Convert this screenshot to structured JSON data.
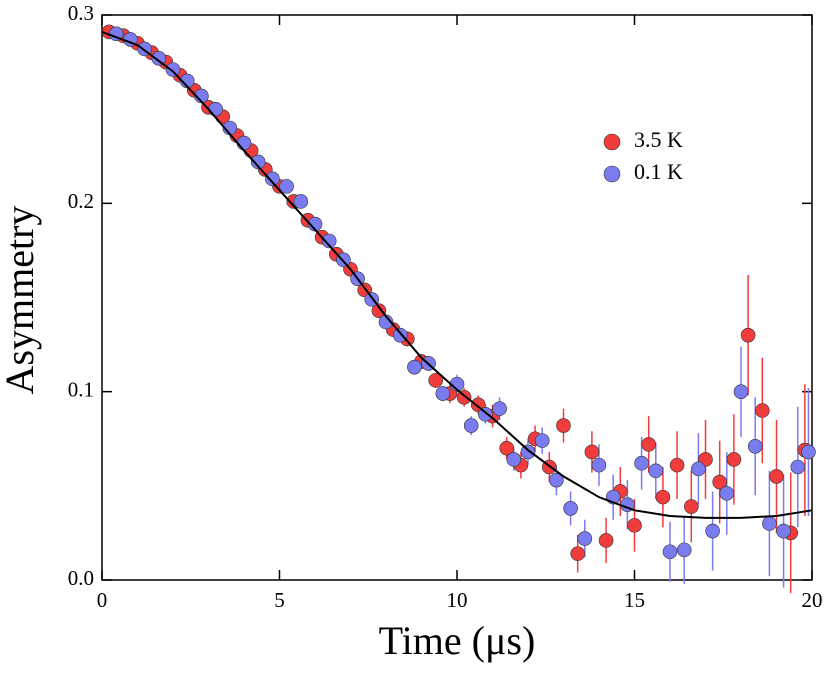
{
  "chart_data": {
    "type": "scatter",
    "xlabel": "Time (μs)",
    "ylabel": "Asymmetry",
    "xlim": [
      0,
      20
    ],
    "ylim": [
      0,
      0.3
    ],
    "xticks": [
      0,
      5,
      10,
      15,
      20
    ],
    "yticks": [
      {
        "value": 0,
        "label": "0.0"
      },
      0.1,
      0.2,
      0.3
    ],
    "legend": "upper right",
    "series": [
      {
        "name": "3.5 K",
        "color": "#f03c3c",
        "x": [
          0.2,
          0.6,
          1.0,
          1.4,
          1.8,
          2.2,
          2.6,
          3.0,
          3.4,
          3.8,
          4.2,
          4.6,
          5.0,
          5.4,
          5.8,
          6.2,
          6.6,
          7.0,
          7.4,
          7.8,
          8.2,
          8.6,
          9.0,
          9.4,
          9.8,
          10.2,
          10.6,
          11.0,
          11.4,
          11.8,
          12.2,
          12.6,
          13.0,
          13.4,
          13.8,
          14.2,
          14.6,
          15.0,
          15.4,
          15.8,
          16.2,
          16.6,
          17.0,
          17.4,
          17.8,
          18.2,
          18.6,
          19.0,
          19.4,
          19.8
        ],
        "values": [
          0.291,
          0.289,
          0.285,
          0.28,
          0.275,
          0.268,
          0.26,
          0.251,
          0.246,
          0.236,
          0.228,
          0.218,
          0.209,
          0.201,
          0.191,
          0.182,
          0.173,
          0.165,
          0.154,
          0.143,
          0.133,
          0.128,
          0.116,
          0.106,
          0.099,
          0.097,
          0.093,
          0.087,
          0.07,
          0.061,
          0.075,
          0.06,
          0.082,
          0.014,
          0.068,
          0.021,
          0.047,
          0.029,
          0.072,
          0.044,
          0.061,
          0.039,
          0.064,
          0.052,
          0.064,
          0.13,
          0.09,
          0.055,
          0.025,
          0.069
        ],
        "errors": [
          0.002,
          0.002,
          0.002,
          0.002,
          0.002,
          0.002,
          0.002,
          0.002,
          0.002,
          0.002,
          0.002,
          0.002,
          0.002,
          0.002,
          0.002,
          0.003,
          0.003,
          0.003,
          0.003,
          0.003,
          0.003,
          0.004,
          0.004,
          0.004,
          0.005,
          0.005,
          0.005,
          0.006,
          0.006,
          0.007,
          0.007,
          0.008,
          0.009,
          0.01,
          0.011,
          0.012,
          0.013,
          0.014,
          0.015,
          0.016,
          0.018,
          0.019,
          0.021,
          0.022,
          0.024,
          0.032,
          0.028,
          0.03,
          0.032,
          0.035
        ]
      },
      {
        "name": "0.1 K",
        "color": "#7b7bf0",
        "x": [
          0.4,
          0.8,
          1.2,
          1.6,
          2.0,
          2.4,
          2.8,
          3.2,
          3.6,
          4.0,
          4.4,
          4.8,
          5.2,
          5.6,
          6.0,
          6.4,
          6.8,
          7.2,
          7.6,
          8.0,
          8.4,
          8.8,
          9.2,
          9.6,
          10.0,
          10.4,
          10.8,
          11.2,
          11.6,
          12.0,
          12.4,
          12.8,
          13.2,
          13.6,
          14.0,
          14.4,
          14.8,
          15.2,
          15.6,
          16.0,
          16.4,
          16.8,
          17.2,
          17.6,
          18.0,
          18.4,
          18.8,
          19.2,
          19.6,
          19.9
        ],
        "values": [
          0.29,
          0.287,
          0.282,
          0.277,
          0.271,
          0.265,
          0.257,
          0.25,
          0.24,
          0.232,
          0.222,
          0.213,
          0.209,
          0.201,
          0.189,
          0.18,
          0.17,
          0.16,
          0.149,
          0.137,
          0.13,
          0.113,
          0.115,
          0.099,
          0.104,
          0.082,
          0.088,
          0.091,
          0.064,
          0.068,
          0.074,
          0.053,
          0.038,
          0.022,
          0.061,
          0.044,
          0.04,
          0.062,
          0.058,
          0.015,
          0.016,
          0.059,
          0.026,
          0.046,
          0.1,
          0.071,
          0.03,
          0.026,
          0.06,
          0.068
        ],
        "errors": [
          0.002,
          0.002,
          0.002,
          0.002,
          0.002,
          0.002,
          0.002,
          0.002,
          0.002,
          0.002,
          0.002,
          0.002,
          0.002,
          0.002,
          0.002,
          0.003,
          0.003,
          0.003,
          0.003,
          0.003,
          0.003,
          0.004,
          0.004,
          0.004,
          0.005,
          0.005,
          0.005,
          0.006,
          0.006,
          0.007,
          0.007,
          0.008,
          0.009,
          0.01,
          0.011,
          0.012,
          0.013,
          0.014,
          0.015,
          0.016,
          0.018,
          0.019,
          0.021,
          0.022,
          0.024,
          0.026,
          0.028,
          0.03,
          0.032,
          0.034
        ]
      }
    ],
    "fit": {
      "color": "#000000",
      "x": [
        0,
        1,
        2,
        3,
        4,
        5,
        6,
        7,
        8,
        9,
        10,
        11,
        12,
        13,
        14,
        15,
        16,
        17,
        18,
        19,
        20
      ],
      "values": [
        0.291,
        0.284,
        0.27,
        0.25,
        0.228,
        0.207,
        0.186,
        0.165,
        0.14,
        0.118,
        0.101,
        0.086,
        0.069,
        0.055,
        0.044,
        0.037,
        0.034,
        0.033,
        0.033,
        0.034,
        0.037
      ]
    }
  }
}
